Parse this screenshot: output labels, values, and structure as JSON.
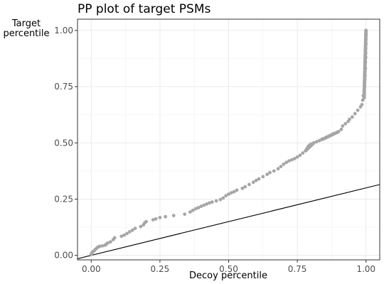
{
  "chart_data": {
    "type": "scatter",
    "title": "PP plot of target PSMs",
    "xlabel": "Decoy percentile",
    "ylabel_lines": [
      "Target",
      "percentile"
    ],
    "xlim": [
      -0.05,
      1.05
    ],
    "ylim": [
      -0.02,
      1.05
    ],
    "x_ticks": [
      0.0,
      0.25,
      0.5,
      0.75,
      1.0
    ],
    "x_tick_labels": [
      "0.00",
      "0.25",
      "0.50",
      "0.75",
      "1.00"
    ],
    "y_ticks": [
      0.0,
      0.25,
      0.5,
      0.75,
      1.0
    ],
    "y_tick_labels": [
      "0.00",
      "0.25",
      "0.50",
      "0.75",
      "1.00"
    ],
    "grid": true,
    "point_color": "#a6a6a6",
    "line_color": "#000000",
    "reference_line": {
      "intercept": 0.0,
      "slope": 0.3
    },
    "series": [
      {
        "points": [
          [
            0.0,
            0.005
          ],
          [
            0.002,
            0.01
          ],
          [
            0.005,
            0.015
          ],
          [
            0.008,
            0.018
          ],
          [
            0.012,
            0.022
          ],
          [
            0.015,
            0.027
          ],
          [
            0.02,
            0.032
          ],
          [
            0.025,
            0.037
          ],
          [
            0.03,
            0.04
          ],
          [
            0.04,
            0.042
          ],
          [
            0.05,
            0.045
          ],
          [
            0.055,
            0.05
          ],
          [
            0.06,
            0.055
          ],
          [
            0.07,
            0.06
          ],
          [
            0.08,
            0.07
          ],
          [
            0.085,
            0.078
          ],
          [
            0.11,
            0.085
          ],
          [
            0.12,
            0.09
          ],
          [
            0.13,
            0.097
          ],
          [
            0.14,
            0.105
          ],
          [
            0.15,
            0.112
          ],
          [
            0.16,
            0.12
          ],
          [
            0.18,
            0.128
          ],
          [
            0.19,
            0.136
          ],
          [
            0.195,
            0.145
          ],
          [
            0.2,
            0.15
          ],
          [
            0.225,
            0.158
          ],
          [
            0.235,
            0.162
          ],
          [
            0.25,
            0.168
          ],
          [
            0.27,
            0.172
          ],
          [
            0.3,
            0.177
          ],
          [
            0.34,
            0.183
          ],
          [
            0.36,
            0.193
          ],
          [
            0.37,
            0.2
          ],
          [
            0.38,
            0.207
          ],
          [
            0.39,
            0.212
          ],
          [
            0.4,
            0.218
          ],
          [
            0.41,
            0.223
          ],
          [
            0.42,
            0.228
          ],
          [
            0.43,
            0.233
          ],
          [
            0.44,
            0.237
          ],
          [
            0.455,
            0.242
          ],
          [
            0.47,
            0.248
          ],
          [
            0.48,
            0.255
          ],
          [
            0.49,
            0.265
          ],
          [
            0.5,
            0.272
          ],
          [
            0.51,
            0.278
          ],
          [
            0.52,
            0.283
          ],
          [
            0.53,
            0.29
          ],
          [
            0.55,
            0.298
          ],
          [
            0.56,
            0.305
          ],
          [
            0.575,
            0.315
          ],
          [
            0.59,
            0.325
          ],
          [
            0.6,
            0.333
          ],
          [
            0.61,
            0.34
          ],
          [
            0.625,
            0.35
          ],
          [
            0.64,
            0.36
          ],
          [
            0.65,
            0.368
          ],
          [
            0.665,
            0.375
          ],
          [
            0.68,
            0.385
          ],
          [
            0.69,
            0.395
          ],
          [
            0.7,
            0.405
          ],
          [
            0.71,
            0.413
          ],
          [
            0.72,
            0.42
          ],
          [
            0.73,
            0.425
          ],
          [
            0.74,
            0.43
          ],
          [
            0.75,
            0.437
          ],
          [
            0.76,
            0.445
          ],
          [
            0.77,
            0.455
          ],
          [
            0.78,
            0.465
          ],
          [
            0.785,
            0.475
          ],
          [
            0.79,
            0.485
          ],
          [
            0.795,
            0.49
          ],
          [
            0.8,
            0.495
          ],
          [
            0.81,
            0.5
          ],
          [
            0.82,
            0.505
          ],
          [
            0.83,
            0.51
          ],
          [
            0.84,
            0.517
          ],
          [
            0.855,
            0.525
          ],
          [
            0.87,
            0.533
          ],
          [
            0.88,
            0.54
          ],
          [
            0.9,
            0.55
          ],
          [
            0.91,
            0.56
          ],
          [
            0.915,
            0.575
          ],
          [
            0.925,
            0.585
          ],
          [
            0.935,
            0.595
          ],
          [
            0.94,
            0.605
          ],
          [
            0.95,
            0.615
          ],
          [
            0.96,
            0.63
          ],
          [
            0.97,
            0.645
          ],
          [
            0.98,
            0.66
          ],
          [
            0.985,
            0.67
          ],
          [
            0.988,
            0.69
          ],
          [
            0.99,
            0.71
          ],
          [
            0.993,
            0.73
          ],
          [
            0.995,
            0.75
          ],
          [
            0.996,
            0.78
          ],
          [
            0.997,
            0.8
          ],
          [
            0.998,
            0.83
          ],
          [
            0.998,
            0.86
          ],
          [
            0.999,
            0.88
          ],
          [
            0.999,
            0.9
          ],
          [
            0.999,
            0.92
          ],
          [
            1.0,
            0.94
          ],
          [
            1.0,
            0.96
          ],
          [
            1.0,
            0.98
          ],
          [
            1.0,
            1.0
          ]
        ],
        "dense_segments": [
          {
            "from": [
              0.993,
              0.7
            ],
            "to": [
              1.0,
              1.0
            ]
          },
          {
            "from": [
              0.84,
              0.515
            ],
            "to": [
              0.9,
              0.55
            ]
          },
          {
            "from": [
              0.78,
              0.465
            ],
            "to": [
              0.81,
              0.5
            ]
          }
        ]
      }
    ]
  }
}
